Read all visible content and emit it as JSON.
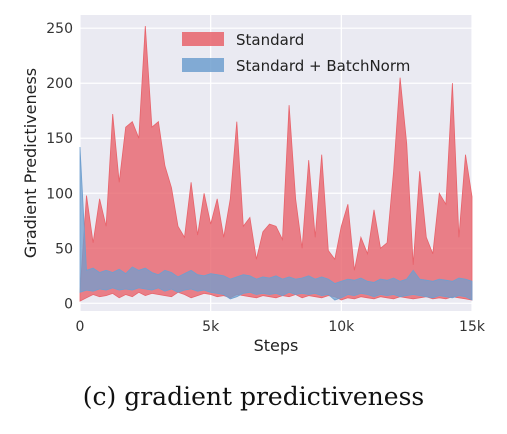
{
  "caption": "(c) gradient predictiveness",
  "chart_data": {
    "type": "area",
    "xlabel": "Steps",
    "ylabel": "Gradient Predictiveness",
    "xlim": [
      0,
      15000
    ],
    "ylim": [
      -7,
      262
    ],
    "xticks": [
      0,
      5000,
      10000,
      15000
    ],
    "xtick_labels": [
      "0",
      "5k",
      "10k",
      "15k"
    ],
    "yticks": [
      0,
      50,
      100,
      150,
      200,
      250
    ],
    "ytick_labels": [
      "0",
      "50",
      "100",
      "150",
      "200",
      "250"
    ],
    "grid": true,
    "background": "#eaeaf2",
    "legend_position": "top-right",
    "series": [
      {
        "name": "Standard",
        "color": "#e8636b",
        "x": [
          0,
          250,
          500,
          750,
          1000,
          1250,
          1500,
          1750,
          2000,
          2250,
          2500,
          2750,
          3000,
          3250,
          3500,
          3750,
          4000,
          4250,
          4500,
          4750,
          5000,
          5250,
          5500,
          5750,
          6000,
          6250,
          6500,
          6750,
          7000,
          7250,
          7500,
          7750,
          8000,
          8250,
          8500,
          8750,
          9000,
          9250,
          9500,
          9750,
          10000,
          10250,
          10500,
          10750,
          11000,
          11250,
          11500,
          11750,
          12000,
          12250,
          12500,
          12750,
          13000,
          13250,
          13500,
          13750,
          14000,
          14250,
          14500,
          14750,
          15000
        ],
        "upper": [
          10,
          98,
          55,
          95,
          70,
          172,
          110,
          160,
          165,
          150,
          252,
          160,
          165,
          125,
          105,
          70,
          60,
          110,
          62,
          100,
          72,
          95,
          60,
          95,
          165,
          70,
          78,
          40,
          65,
          72,
          70,
          58,
          180,
          95,
          50,
          130,
          60,
          135,
          48,
          40,
          70,
          90,
          30,
          60,
          45,
          85,
          50,
          55,
          120,
          205,
          145,
          35,
          120,
          60,
          45,
          100,
          90,
          200,
          60,
          135,
          97
        ],
        "lower": [
          2,
          5,
          8,
          6,
          7,
          9,
          5,
          8,
          6,
          10,
          7,
          9,
          8,
          7,
          6,
          10,
          8,
          5,
          7,
          9,
          8,
          6,
          7,
          5,
          8,
          7,
          6,
          5,
          7,
          6,
          5,
          7,
          6,
          8,
          5,
          7,
          6,
          5,
          7,
          6,
          3,
          5,
          4,
          6,
          5,
          4,
          6,
          5,
          4,
          6,
          5,
          4,
          5,
          6,
          4,
          5,
          4,
          6,
          5,
          4,
          3
        ]
      },
      {
        "name": "Standard + BatchNorm",
        "color": "#6f9fcf",
        "x": [
          0,
          250,
          500,
          750,
          1000,
          1250,
          1500,
          1750,
          2000,
          2250,
          2500,
          2750,
          3000,
          3250,
          3500,
          3750,
          4000,
          4250,
          4500,
          4750,
          5000,
          5250,
          5500,
          5750,
          6000,
          6250,
          6500,
          6750,
          7000,
          7250,
          7500,
          7750,
          8000,
          8250,
          8500,
          8750,
          9000,
          9250,
          9500,
          9750,
          10000,
          10250,
          10500,
          10750,
          11000,
          11250,
          11500,
          11750,
          12000,
          12250,
          12500,
          12750,
          13000,
          13250,
          13500,
          13750,
          14000,
          14250,
          14500,
          14750,
          15000
        ],
        "upper": [
          142,
          30,
          32,
          28,
          30,
          28,
          31,
          27,
          33,
          30,
          32,
          28,
          26,
          30,
          28,
          24,
          27,
          30,
          26,
          25,
          27,
          26,
          25,
          22,
          24,
          26,
          25,
          22,
          24,
          23,
          25,
          22,
          24,
          22,
          23,
          25,
          22,
          24,
          22,
          18,
          20,
          22,
          21,
          23,
          20,
          19,
          22,
          21,
          23,
          20,
          22,
          30,
          22,
          21,
          20,
          22,
          21,
          20,
          23,
          22,
          20
        ],
        "lower": [
          10,
          12,
          11,
          13,
          12,
          14,
          12,
          13,
          12,
          14,
          13,
          12,
          14,
          11,
          13,
          10,
          12,
          13,
          11,
          12,
          10,
          9,
          8,
          4,
          6,
          9,
          10,
          8,
          9,
          8,
          9,
          7,
          10,
          8,
          9,
          8,
          9,
          7,
          8,
          3,
          5,
          8,
          7,
          9,
          8,
          6,
          8,
          7,
          8,
          6,
          7,
          8,
          7,
          6,
          5,
          7,
          6,
          5,
          7,
          6,
          3
        ]
      }
    ]
  }
}
